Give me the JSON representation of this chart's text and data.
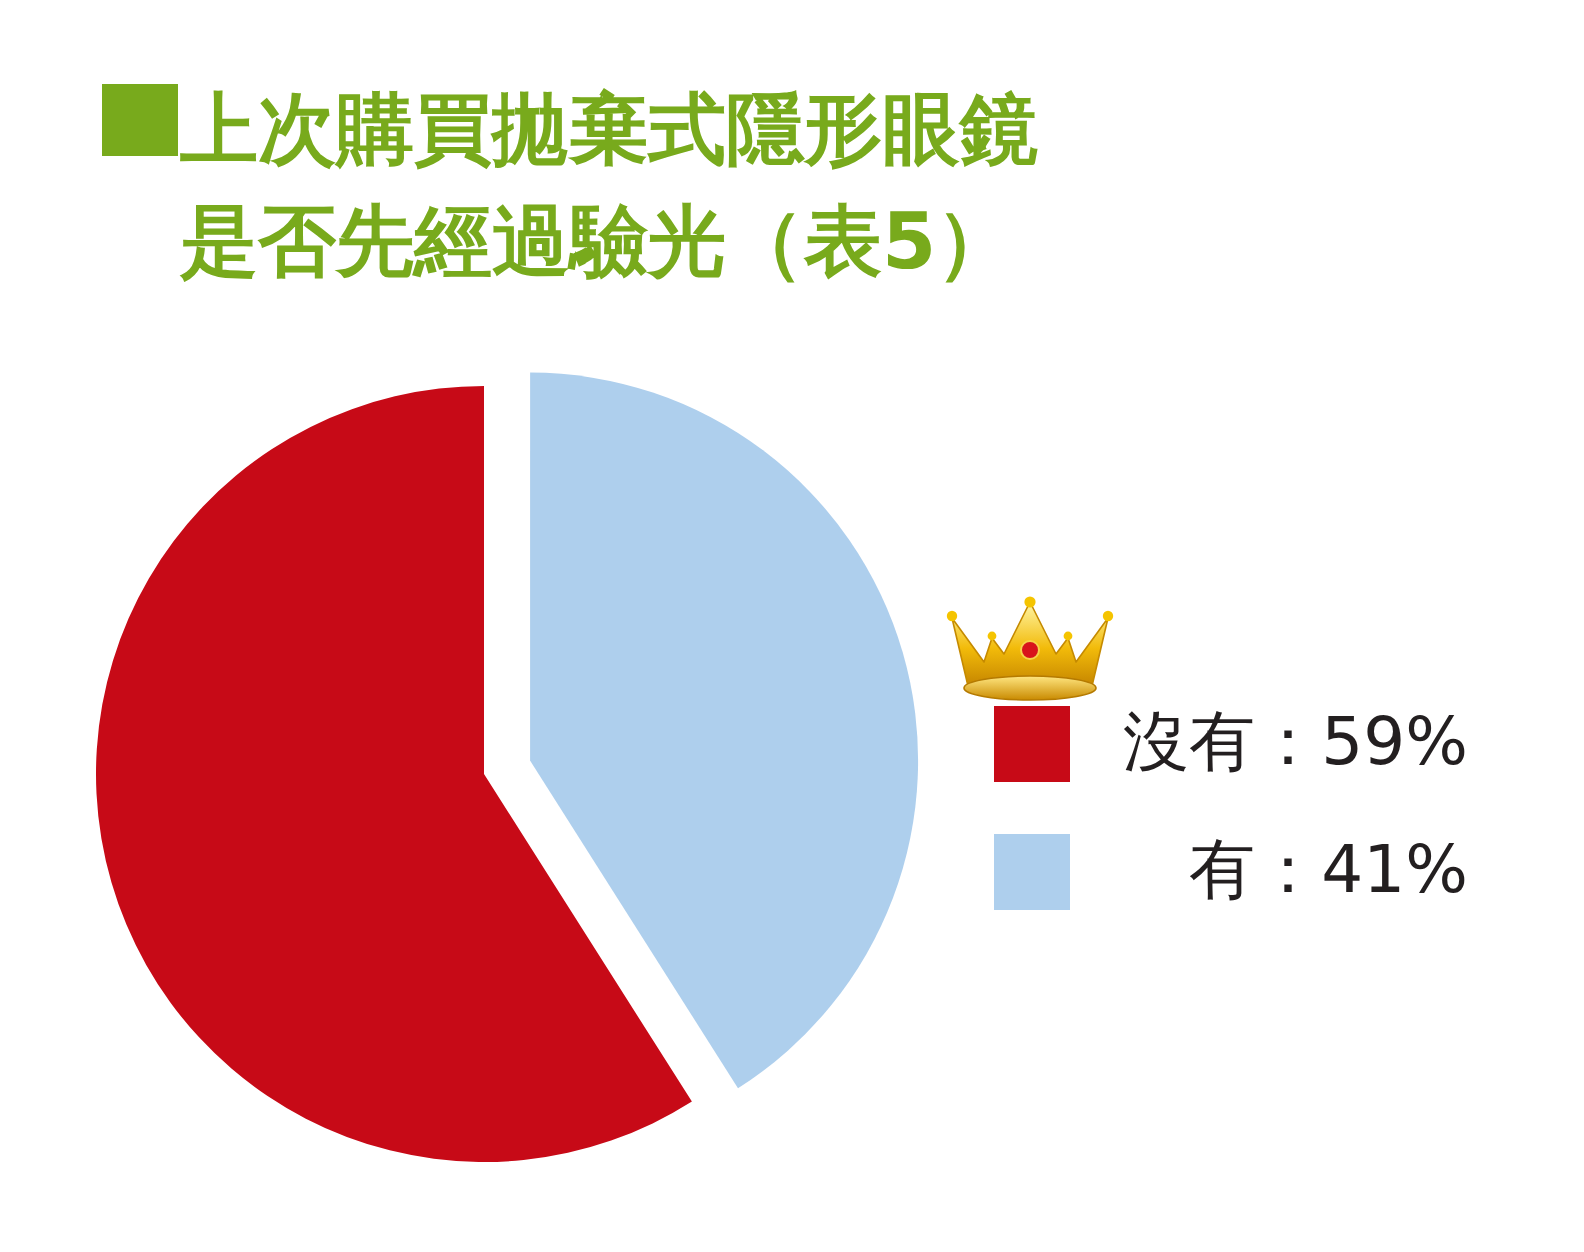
{
  "chart_data": {
    "type": "pie",
    "title": "上次購買拋棄式隱形眼鏡是否先經過驗光（表5）",
    "categories": [
      "沒有",
      "有"
    ],
    "values": [
      59,
      41
    ],
    "colors": [
      "#c70a17",
      "#aecfed"
    ],
    "value_labels": [
      "59%",
      "41%"
    ],
    "legend": "right"
  }
}
